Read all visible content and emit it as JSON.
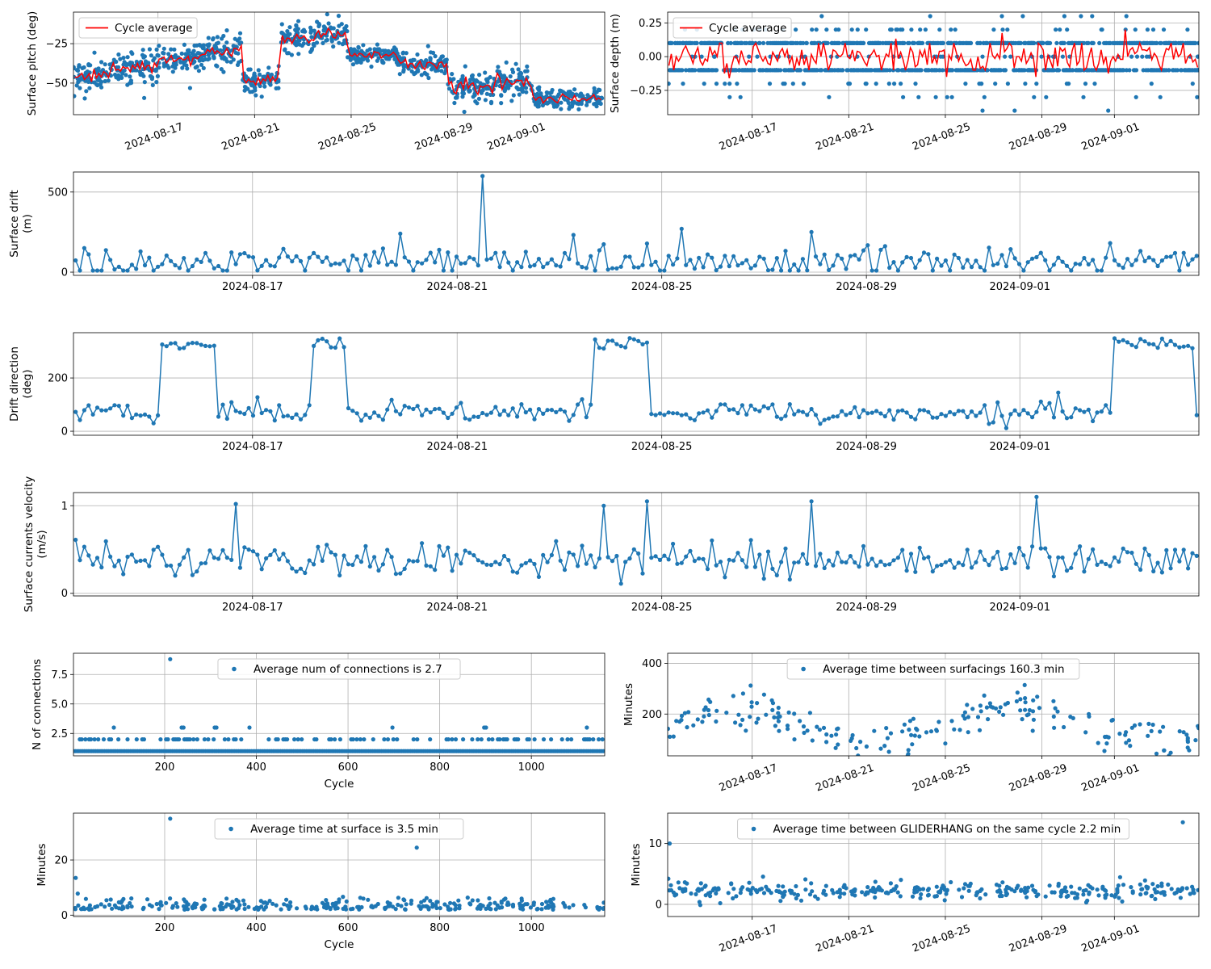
{
  "colors": {
    "series": "#1f77b4",
    "average": "#ff0000",
    "grid": "#b0b0b0",
    "axes": "#000000",
    "legend_border": "#cccccc"
  },
  "chart_data": [
    {
      "id": "pitch",
      "type": "scatter",
      "xscale": "date",
      "xlim": [
        "2024-08-13T12:00",
        "2024-09-04T12:00"
      ],
      "xticks": [
        "2024-08-17",
        "2024-08-21",
        "2024-08-25",
        "2024-08-29",
        "2024-09-01"
      ],
      "ylim": [
        -70,
        -5
      ],
      "yticks": [
        -50,
        -25
      ],
      "ylabel": "Surface pitch (deg)",
      "xlabel": "",
      "grid": true,
      "legend": {
        "loc": "upper-left",
        "entries": [
          "Cycle average"
        ]
      },
      "segments": [
        {
          "start": "2024-08-13T12:00",
          "end": "2024-08-15T00:00",
          "mean": -45,
          "spread": 8
        },
        {
          "start": "2024-08-15T00:00",
          "end": "2024-08-17T00:00",
          "mean": -40,
          "spread": 8
        },
        {
          "start": "2024-08-17T00:00",
          "end": "2024-08-19T00:00",
          "mean": -33,
          "spread": 8
        },
        {
          "start": "2024-08-19T00:00",
          "end": "2024-08-20T12:00",
          "mean": -30,
          "spread": 8
        },
        {
          "start": "2024-08-20T12:00",
          "end": "2024-08-22T00:00",
          "mean": -48,
          "spread": 7
        },
        {
          "start": "2024-08-22T00:00",
          "end": "2024-08-23T12:00",
          "mean": -22,
          "spread": 8
        },
        {
          "start": "2024-08-23T12:00",
          "end": "2024-08-24T20:00",
          "mean": -18,
          "spread": 7
        },
        {
          "start": "2024-08-24T20:00",
          "end": "2024-08-27T00:00",
          "mean": -32,
          "spread": 5
        },
        {
          "start": "2024-08-27T00:00",
          "end": "2024-08-29T00:00",
          "mean": -38,
          "spread": 6
        },
        {
          "start": "2024-08-29T00:00",
          "end": "2024-08-31T00:00",
          "mean": -52,
          "spread": 7
        },
        {
          "start": "2024-08-31T00:00",
          "end": "2024-09-01T12:00",
          "mean": -50,
          "spread": 7
        },
        {
          "start": "2024-09-01T12:00",
          "end": "2024-09-04T12:00",
          "mean": -60,
          "spread": 5
        }
      ],
      "series": [
        {
          "name": "",
          "style": "points",
          "n": 1100
        },
        {
          "name": "Cycle average",
          "style": "line",
          "color": "#ff0000"
        }
      ]
    },
    {
      "id": "depth",
      "type": "scatter",
      "xscale": "date",
      "xlim": [
        "2024-08-13T12:00",
        "2024-09-04T12:00"
      ],
      "xticks": [
        "2024-08-17",
        "2024-08-21",
        "2024-08-25",
        "2024-08-29",
        "2024-09-01"
      ],
      "ylim": [
        -0.43,
        0.33
      ],
      "yticks": [
        -0.25,
        0.0,
        0.25
      ],
      "ticklabels": [
        "−0.25",
        "0.00",
        "0.25"
      ],
      "ylabel": "Surface depth (m)",
      "xlabel": "",
      "grid": true,
      "legend": {
        "loc": "upper-left",
        "entries": [
          "Cycle average"
        ]
      },
      "levels": [
        -0.4,
        -0.3,
        -0.2,
        -0.1,
        0.0,
        0.1,
        0.2,
        0.3
      ],
      "series": [
        {
          "name": "",
          "style": "points",
          "n": 1100
        },
        {
          "name": "Cycle average",
          "style": "line",
          "color": "#ff0000"
        }
      ]
    },
    {
      "id": "drift",
      "type": "line",
      "xscale": "date",
      "xlim": [
        "2024-08-13T12:00",
        "2024-09-04T12:00"
      ],
      "xticks": [
        "2024-08-17",
        "2024-08-21",
        "2024-08-25",
        "2024-08-29",
        "2024-09-01"
      ],
      "ylim": [
        -20,
        625
      ],
      "yticks": [
        0,
        500
      ],
      "ylabel": "Surface drift\n(m)",
      "xlabel": "",
      "grid": true,
      "series": [
        {
          "name": "",
          "style": "line-markers",
          "n": 260,
          "base": 60,
          "spread": 90,
          "spikes": [
            [
              94,
              600
            ],
            [
              140,
              270
            ],
            [
              170,
              250
            ],
            [
              75,
              240
            ]
          ]
        }
      ]
    },
    {
      "id": "direction",
      "type": "line",
      "xscale": "date",
      "xlim": [
        "2024-08-13T12:00",
        "2024-09-04T12:00"
      ],
      "xticks": [
        "2024-08-17",
        "2024-08-21",
        "2024-08-25",
        "2024-08-29",
        "2024-09-01"
      ],
      "ylim": [
        -15,
        370
      ],
      "yticks": [
        0,
        200
      ],
      "ylabel": "Drift direction\n(deg)",
      "xlabel": "",
      "grid": true,
      "series": [
        {
          "name": "",
          "style": "line-markers",
          "n": 260,
          "base": 70,
          "spread": 40,
          "highRuns": [
            [
              20,
              32
            ],
            [
              55,
              62
            ],
            [
              120,
              132
            ],
            [
              240,
              258
            ]
          ]
        }
      ]
    },
    {
      "id": "velocity",
      "type": "line",
      "xscale": "date",
      "xlim": [
        "2024-08-13T12:00",
        "2024-09-04T12:00"
      ],
      "xticks": [
        "2024-08-17",
        "2024-08-21",
        "2024-08-25",
        "2024-08-29",
        "2024-09-01"
      ],
      "ylim": [
        -0.03,
        1.15
      ],
      "yticks": [
        0,
        1
      ],
      "ylabel": "Surface currents velocity\n(m/s)",
      "xlabel": "",
      "grid": true,
      "series": [
        {
          "name": "",
          "style": "line-markers",
          "n": 260,
          "base": 0.38,
          "spread": 0.18,
          "spikes": [
            [
              37,
              1.02
            ],
            [
              122,
              1.0
            ],
            [
              132,
              1.05
            ],
            [
              170,
              1.05
            ],
            [
              222,
              1.1
            ]
          ]
        }
      ]
    },
    {
      "id": "connections",
      "type": "scatter",
      "xscale": "linear",
      "xlim": [
        1,
        1160
      ],
      "xticks": [
        200,
        400,
        600,
        800,
        1000
      ],
      "ylim": [
        0.6,
        9.3
      ],
      "yticks": [
        2.5,
        5.0,
        7.5
      ],
      "ticklabels": [
        "2.5",
        "5.0",
        "7.5"
      ],
      "ylabel": "N of connections",
      "xlabel": "Cycle",
      "grid": true,
      "legend": {
        "loc": "upper-center",
        "entries": [
          "Average num of connections is 2.7"
        ]
      },
      "series": [
        {
          "name": "Average num of connections is 2.7",
          "style": "points",
          "levels": [
            1,
            2,
            3
          ],
          "outliers": [
            [
              212,
              8.8
            ]
          ]
        }
      ]
    },
    {
      "id": "surfacings",
      "type": "scatter",
      "xscale": "date",
      "xlim": [
        "2024-08-13T12:00",
        "2024-09-04T12:00"
      ],
      "xticks": [
        "2024-08-17",
        "2024-08-21",
        "2024-08-25",
        "2024-08-29",
        "2024-09-01"
      ],
      "ylim": [
        35,
        440
      ],
      "yticks": [
        200,
        400
      ],
      "ylabel": "Minutes",
      "xlabel": "",
      "grid": true,
      "legend": {
        "loc": "upper-center",
        "entries": [
          "Average time between surfacings 160.3 min"
        ]
      },
      "series": [
        {
          "name": "Average time between surfacings 160.3 min",
          "style": "points",
          "n": 200,
          "base": 160,
          "spread": 80
        }
      ]
    },
    {
      "id": "surface-time",
      "type": "scatter",
      "xscale": "linear",
      "xlim": [
        1,
        1160
      ],
      "xticks": [
        200,
        400,
        600,
        800,
        1000
      ],
      "ylim": [
        -0.5,
        37
      ],
      "yticks": [
        0,
        20
      ],
      "ylabel": "Minutes",
      "xlabel": "Cycle",
      "grid": true,
      "legend": {
        "loc": "upper-center",
        "entries": [
          "Average time at surface is 3.5 min"
        ]
      },
      "series": [
        {
          "name": "Average time at surface is 3.5 min",
          "style": "points",
          "n": 300,
          "base": 3.0,
          "spread": 2.0,
          "outliers": [
            [
              212,
              35
            ],
            [
              750,
              24.5
            ],
            [
              6,
              13.5
            ]
          ]
        }
      ]
    },
    {
      "id": "gliderhang",
      "type": "scatter",
      "xscale": "date",
      "xlim": [
        "2024-08-13T12:00",
        "2024-09-04T12:00"
      ],
      "xticks": [
        "2024-08-17",
        "2024-08-21",
        "2024-08-25",
        "2024-08-29",
        "2024-09-01"
      ],
      "ylim": [
        -2,
        15
      ],
      "yticks": [
        0,
        10
      ],
      "ylabel": "Minutes",
      "xlabel": "",
      "grid": true,
      "legend": {
        "loc": "upper-center",
        "entries": [
          "Average time between GLIDERHANG on the same cycle 2.2 min"
        ]
      },
      "series": [
        {
          "name": "Average time between GLIDERHANG on the same cycle 2.2 min",
          "style": "points",
          "n": 320,
          "base": 2.2,
          "spread": 1.5,
          "outliers": [
            [
              "2024-09-03T20:00",
              13.5
            ],
            [
              "2024-08-13T14:00",
              10
            ]
          ]
        }
      ]
    }
  ]
}
